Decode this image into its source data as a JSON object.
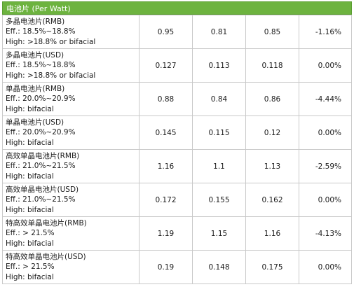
{
  "header": {
    "title": "电池片 (Per Watt)"
  },
  "rows": [
    {
      "name": "多晶电池片(RMB)",
      "eff": "Eff.: 18.5%~18.8%",
      "high": "High: >18.8% or bifacial",
      "v1": "0.95",
      "v2": "0.81",
      "v3": "0.85",
      "change": "-1.16%"
    },
    {
      "name": "多晶电池片(USD)",
      "eff": "Eff.: 18.5%~18.8%",
      "high": "High: >18.8% or bifacial",
      "v1": "0.127",
      "v2": "0.113",
      "v3": "0.118",
      "change": "0.00%"
    },
    {
      "name": "单晶电池片(RMB)",
      "eff": "Eff.: 20.0%~20.9%",
      "high": "High: bifacial",
      "v1": "0.88",
      "v2": "0.84",
      "v3": "0.86",
      "change": "-4.44%"
    },
    {
      "name": "单晶电池片(USD)",
      "eff": "Eff.: 20.0%~20.9%",
      "high": "High: bifacial",
      "v1": "0.145",
      "v2": "0.115",
      "v3": "0.12",
      "change": "0.00%"
    },
    {
      "name": "高效单晶电池片(RMB)",
      "eff": "Eff.: 21.0%~21.5%",
      "high": "High: bifacial",
      "v1": "1.16",
      "v2": "1.1",
      "v3": "1.13",
      "change": "-2.59%"
    },
    {
      "name": "高效单晶电池片(USD)",
      "eff": "Eff.: 21.0%~21.5%",
      "high": "High: bifacial",
      "v1": "0.172",
      "v2": "0.155",
      "v3": "0.162",
      "change": "0.00%"
    },
    {
      "name": "特高效单晶电池片(RMB)",
      "eff": "Eff.: > 21.5%",
      "high": "High: bifacial",
      "v1": "1.19",
      "v2": "1.15",
      "v3": "1.16",
      "change": "-4.13%"
    },
    {
      "name": "特高效单晶电池片(USD)",
      "eff": "Eff.: > 21.5%",
      "high": "High: bifacial",
      "v1": "0.19",
      "v2": "0.148",
      "v3": "0.175",
      "change": "0.00%"
    }
  ],
  "colors": {
    "header_bg": "#6db33f",
    "grid": "#c9c9c9"
  }
}
